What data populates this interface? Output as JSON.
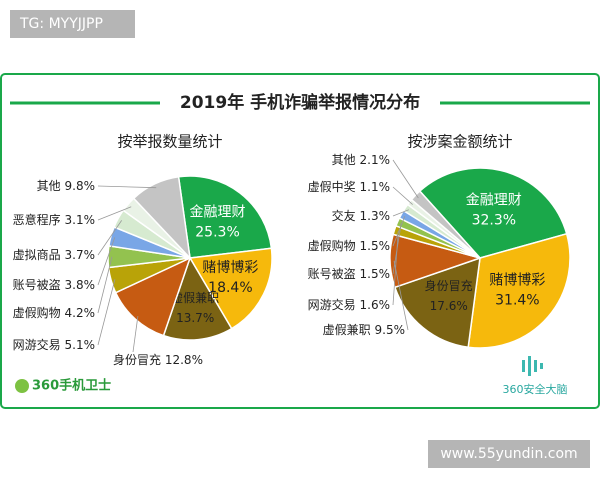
{
  "watermark_top": "TG: MYYJJPP",
  "title": "2019年 手机诈骗举报情况分布",
  "chart_data": [
    {
      "type": "pie",
      "title": "按举报数量统计",
      "categories": [
        "金融理财",
        "赌博博彩",
        "虚假兼职",
        "身份冒充",
        "网游交易",
        "虚假购物",
        "账号被盗",
        "虚拟商品",
        "恶意程序",
        "其他"
      ],
      "values": [
        25.3,
        18.4,
        13.7,
        12.8,
        5.1,
        4.2,
        3.8,
        3.7,
        3.1,
        9.8
      ],
      "value_labels": [
        "25.3%",
        "18.4%",
        "13.7%",
        "12.8%",
        "5.1%",
        "4.2%",
        "3.8%",
        "3.7%",
        "3.1%",
        "9.8%"
      ],
      "colors": [
        "#1aa84a",
        "#f6b90c",
        "#7b6313",
        "#c65b12",
        "#b9a308",
        "#93c24f",
        "#79a6e6",
        "#d6ead0",
        "#e9f2e6",
        "#c4c4c4"
      ]
    },
    {
      "type": "pie",
      "title": "按涉案金额统计",
      "categories": [
        "金融理财",
        "赌博博彩",
        "身份冒充",
        "虚假兼职",
        "网游交易",
        "账号被盗",
        "虚假购物",
        "交友",
        "虚假中奖",
        "其他"
      ],
      "values": [
        32.3,
        31.4,
        17.6,
        9.5,
        1.6,
        1.5,
        1.5,
        1.3,
        1.1,
        2.1
      ],
      "value_labels": [
        "32.3%",
        "31.4%",
        "17.6%",
        "9.5%",
        "1.6%",
        "1.5%",
        "1.5%",
        "1.3%",
        "1.1%",
        "2.1%"
      ],
      "colors": [
        "#1aa84a",
        "#f6b90c",
        "#7b6313",
        "#c65b12",
        "#b9a308",
        "#93c24f",
        "#79a6e6",
        "#d6ead0",
        "#e9f2e6",
        "#c4c4c4"
      ]
    }
  ],
  "logos": [
    "360手机卫士",
    "360安全大脑"
  ],
  "watermark_bottom": "www.55yundin.com"
}
